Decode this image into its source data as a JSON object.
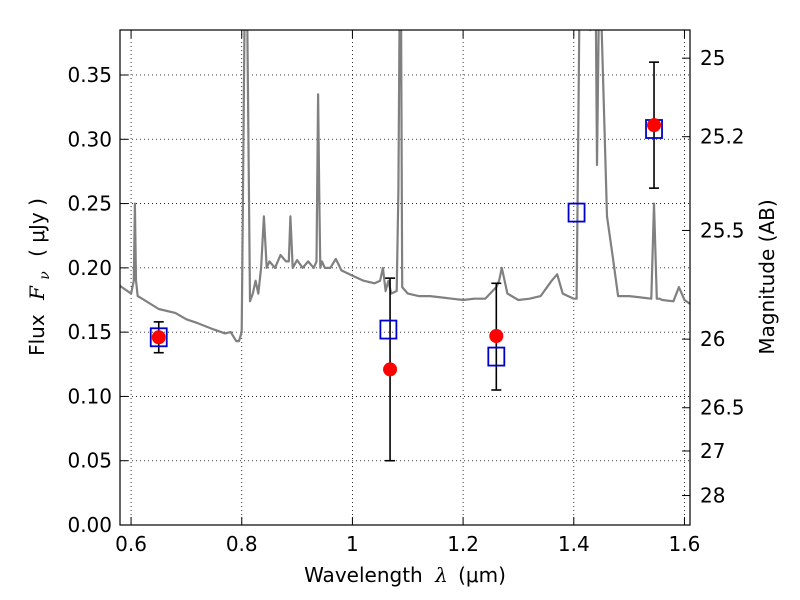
{
  "chart_data": {
    "type": "scatter",
    "xlabel": {
      "prefix": "Wavelength",
      "symbol": "λ",
      "unit": "(μm)"
    },
    "ylabel": {
      "prefix": "Flux",
      "symbol": "F",
      "subscript": "ν",
      "unit": "( μJy )"
    },
    "y2label": "Magnitude (AB)",
    "xlim": [
      0.58,
      1.61
    ],
    "ylim": [
      0.0,
      0.385
    ],
    "grid": true,
    "x_ticks": [
      {
        "value": 0.6,
        "label": "0.6"
      },
      {
        "value": 0.8,
        "label": "0.8"
      },
      {
        "value": 1.0,
        "label": "1"
      },
      {
        "value": 1.2,
        "label": "1.2"
      },
      {
        "value": 1.4,
        "label": "1.4"
      },
      {
        "value": 1.6,
        "label": "1.6"
      }
    ],
    "y_ticks": [
      {
        "value": 0.0,
        "label": "0.00"
      },
      {
        "value": 0.05,
        "label": "0.05"
      },
      {
        "value": 0.1,
        "label": "0.10"
      },
      {
        "value": 0.15,
        "label": "0.15"
      },
      {
        "value": 0.2,
        "label": "0.20"
      },
      {
        "value": 0.25,
        "label": "0.25"
      },
      {
        "value": 0.3,
        "label": "0.30"
      },
      {
        "value": 0.35,
        "label": "0.35"
      }
    ],
    "y2_ticks": [
      {
        "magnitude": 25,
        "label": "25"
      },
      {
        "magnitude": 25.2,
        "label": "25.2"
      },
      {
        "magnitude": 25.5,
        "label": "25.5"
      },
      {
        "magnitude": 26,
        "label": "26"
      },
      {
        "magnitude": 26.5,
        "label": "26.5"
      },
      {
        "magnitude": 27,
        "label": "27"
      },
      {
        "magnitude": 28,
        "label": "28"
      }
    ],
    "series": [
      {
        "kind": "spectrum",
        "color": "#808080",
        "x": [
          0.58,
          0.6,
          0.605,
          0.607,
          0.609,
          0.612,
          0.62,
          0.65,
          0.68,
          0.7,
          0.72,
          0.75,
          0.77,
          0.78,
          0.79,
          0.795,
          0.8,
          0.802,
          0.805,
          0.807,
          0.81,
          0.815,
          0.82,
          0.825,
          0.83,
          0.835,
          0.84,
          0.845,
          0.85,
          0.86,
          0.87,
          0.88,
          0.885,
          0.888,
          0.892,
          0.9,
          0.91,
          0.92,
          0.93,
          0.935,
          0.938,
          0.94,
          0.942,
          0.945,
          0.95,
          0.96,
          0.97,
          0.98,
          0.99,
          1.0,
          1.02,
          1.04,
          1.05,
          1.055,
          1.06,
          1.065,
          1.07,
          1.08,
          1.083,
          1.085,
          1.088,
          1.09,
          1.1,
          1.12,
          1.14,
          1.16,
          1.18,
          1.2,
          1.22,
          1.24,
          1.26,
          1.265,
          1.27,
          1.275,
          1.28,
          1.3,
          1.32,
          1.34,
          1.36,
          1.37,
          1.38,
          1.4,
          1.405,
          1.408,
          1.41,
          1.42,
          1.43,
          1.44,
          1.442,
          1.445,
          1.45,
          1.46,
          1.47,
          1.48,
          1.5,
          1.52,
          1.54,
          1.545,
          1.55,
          1.555,
          1.56,
          1.58,
          1.59,
          1.6,
          1.61
        ],
        "y": [
          0.186,
          0.18,
          0.19,
          0.25,
          0.19,
          0.178,
          0.176,
          0.168,
          0.165,
          0.16,
          0.157,
          0.152,
          0.149,
          0.15,
          0.143,
          0.143,
          0.15,
          0.25,
          0.39,
          0.39,
          0.39,
          0.174,
          0.18,
          0.19,
          0.18,
          0.2,
          0.24,
          0.2,
          0.205,
          0.2,
          0.21,
          0.205,
          0.205,
          0.24,
          0.2,
          0.206,
          0.2,
          0.205,
          0.2,
          0.205,
          0.335,
          0.26,
          0.2,
          0.205,
          0.2,
          0.2,
          0.207,
          0.198,
          0.196,
          0.194,
          0.19,
          0.188,
          0.19,
          0.2,
          0.182,
          0.19,
          0.18,
          0.182,
          0.26,
          0.39,
          0.39,
          0.185,
          0.18,
          0.178,
          0.178,
          0.177,
          0.176,
          0.175,
          0.176,
          0.176,
          0.185,
          0.19,
          0.2,
          0.19,
          0.18,
          0.175,
          0.176,
          0.178,
          0.19,
          0.195,
          0.18,
          0.176,
          0.176,
          0.3,
          0.39,
          0.39,
          0.385,
          0.39,
          0.28,
          0.39,
          0.39,
          0.24,
          0.21,
          0.178,
          0.178,
          0.177,
          0.176,
          0.25,
          0.176,
          0.176,
          0.175,
          0.174,
          0.185,
          0.175,
          0.172
        ]
      },
      {
        "kind": "observed",
        "color": "#ff0000",
        "x": [
          0.65,
          1.068,
          1.26,
          1.545
        ],
        "y": [
          0.146,
          0.121,
          0.147,
          0.311
        ],
        "yerr_low": [
          0.134,
          0.05,
          0.105,
          0.262
        ],
        "yerr_high": [
          0.158,
          0.192,
          0.188,
          0.36
        ]
      },
      {
        "kind": "model",
        "color": "#0000cc",
        "x": [
          0.65,
          1.065,
          1.26,
          1.405,
          1.545
        ],
        "y": [
          0.146,
          0.152,
          0.131,
          0.243,
          0.308
        ]
      }
    ]
  }
}
